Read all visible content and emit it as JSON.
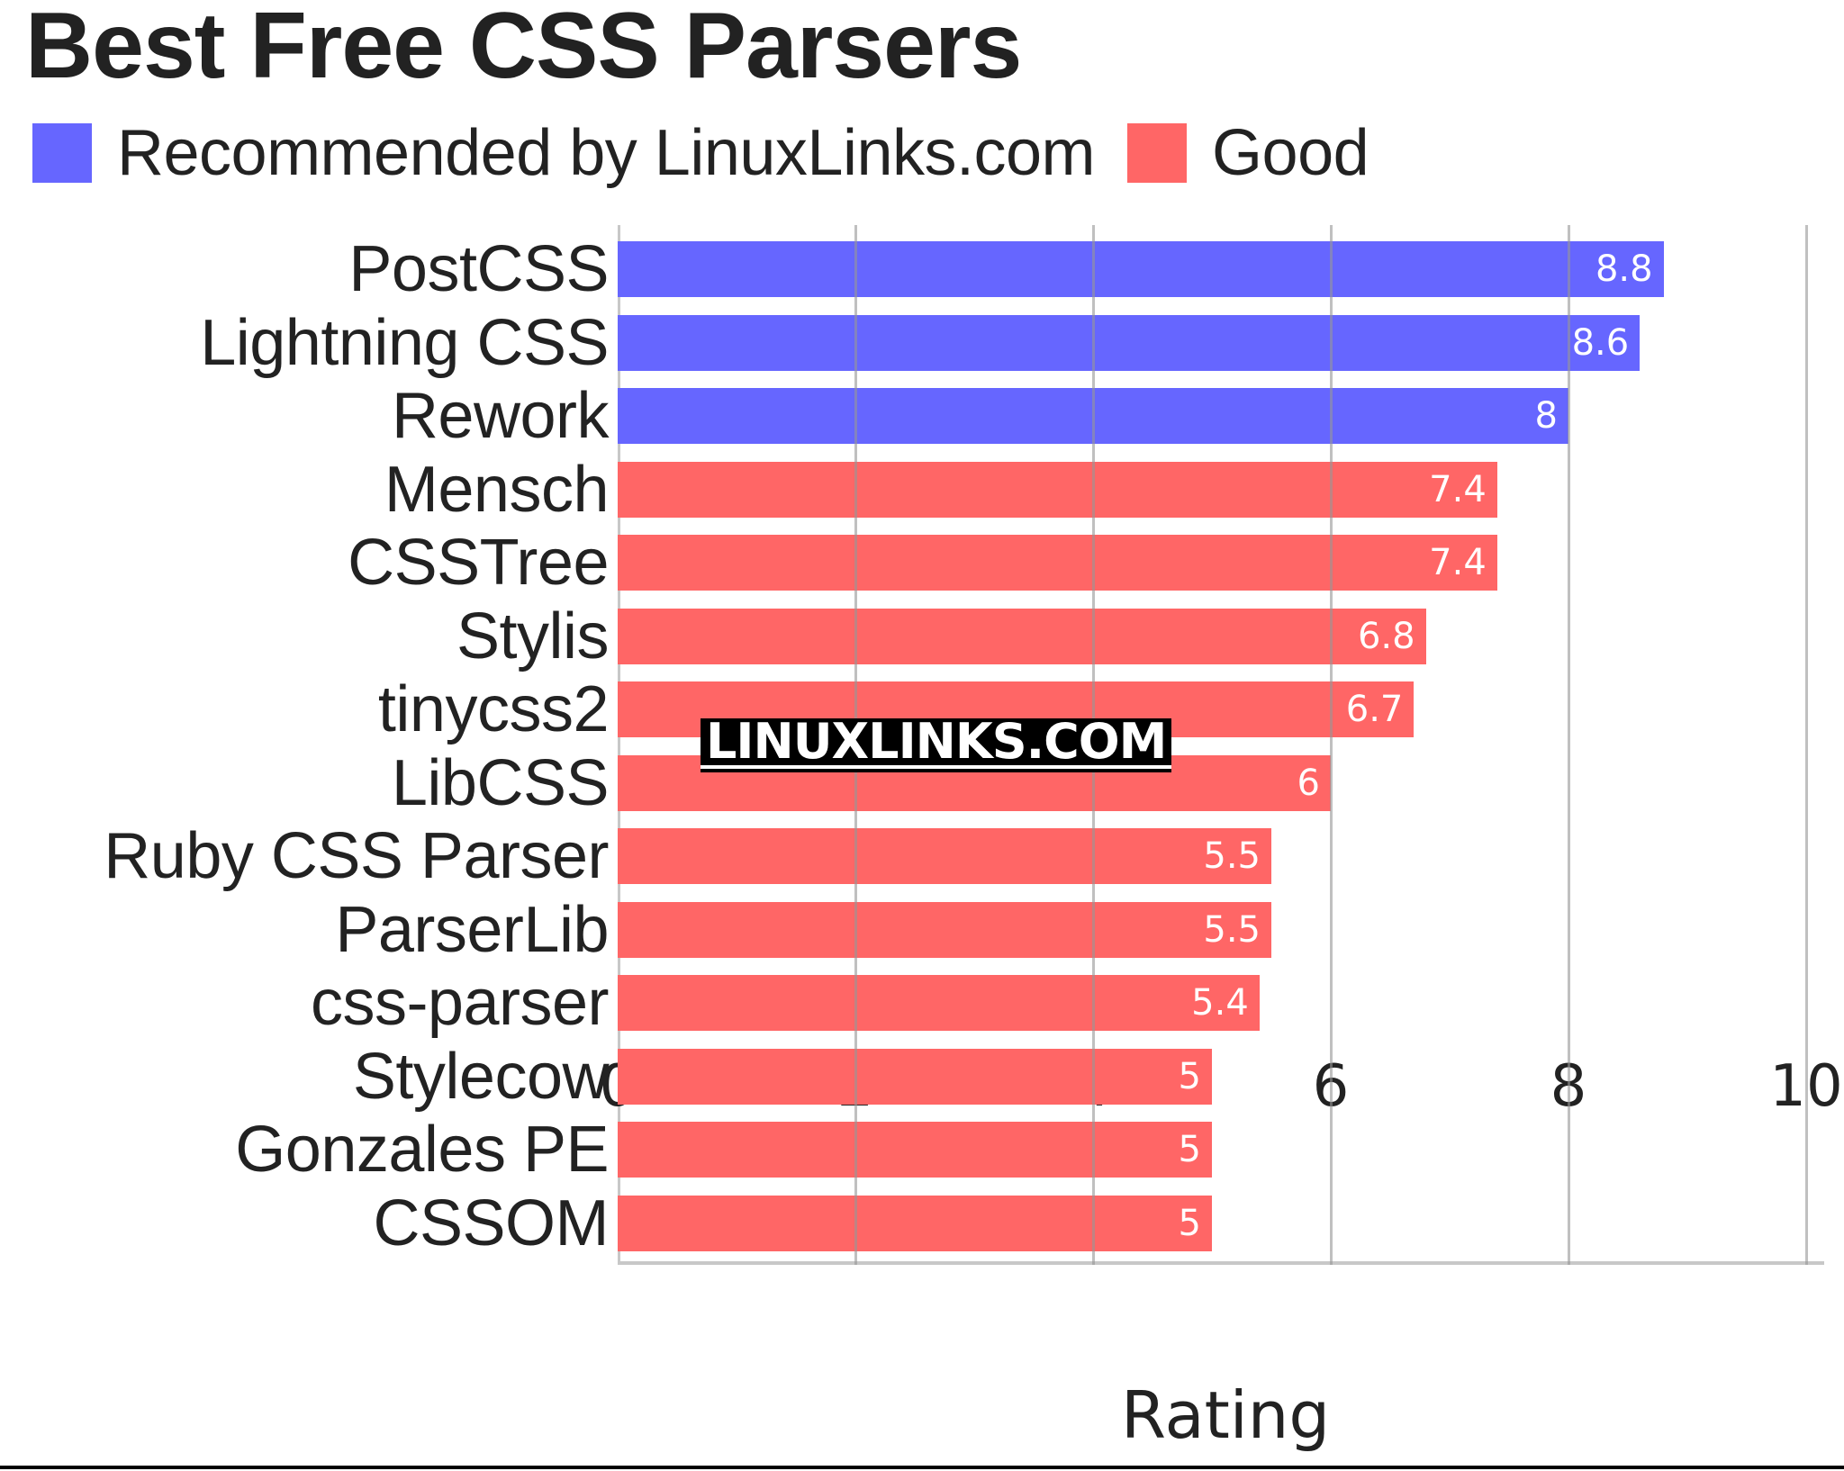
{
  "title": "Best Free CSS Parsers",
  "legend": [
    {
      "label": "Recommended by LinuxLinks.com",
      "color": "#6666ff"
    },
    {
      "label": "Good",
      "color": "#ff6666"
    }
  ],
  "watermark": "LINUXLINKS.COM",
  "chart_data": {
    "type": "bar",
    "orientation": "horizontal",
    "title": "Best Free CSS Parsers",
    "xlabel": "Rating",
    "ylabel": "",
    "xlim": [
      0,
      10
    ],
    "xticks": [
      "0",
      "2",
      "4",
      "6",
      "8",
      "10"
    ],
    "grid": true,
    "legend_position": "top",
    "categories": [
      "PostCSS",
      "Lightning CSS",
      "Rework",
      "Mensch",
      "CSSTree",
      "Stylis",
      "tinycss2",
      "LibCSS",
      "Ruby CSS Parser",
      "ParserLib",
      "css-parser",
      "Stylecow",
      "Gonzales PE",
      "CSSOM"
    ],
    "values": [
      8.8,
      8.6,
      8,
      7.4,
      7.4,
      6.8,
      6.7,
      6,
      5.5,
      5.5,
      5.4,
      5,
      5,
      5
    ],
    "value_labels": [
      "8.8",
      "8.6",
      "8",
      "7.4",
      "7.4",
      "6.8",
      "6.7",
      "6",
      "5.5",
      "5.5",
      "5.4",
      "5",
      "5",
      "5"
    ],
    "series_membership": [
      "Recommended by LinuxLinks.com",
      "Recommended by LinuxLinks.com",
      "Recommended by LinuxLinks.com",
      "Good",
      "Good",
      "Good",
      "Good",
      "Good",
      "Good",
      "Good",
      "Good",
      "Good",
      "Good",
      "Good"
    ],
    "series": [
      {
        "name": "Recommended by LinuxLinks.com",
        "color": "#6666ff",
        "categories": [
          "PostCSS",
          "Lightning CSS",
          "Rework"
        ],
        "values": [
          8.8,
          8.6,
          8
        ]
      },
      {
        "name": "Good",
        "color": "#ff6666",
        "categories": [
          "Mensch",
          "CSSTree",
          "Stylis",
          "tinycss2",
          "LibCSS",
          "Ruby CSS Parser",
          "ParserLib",
          "css-parser",
          "Stylecow",
          "Gonzales PE",
          "CSSOM"
        ],
        "values": [
          7.4,
          7.4,
          6.8,
          6.7,
          6,
          5.5,
          5.5,
          5.4,
          5,
          5,
          5
        ]
      }
    ]
  }
}
